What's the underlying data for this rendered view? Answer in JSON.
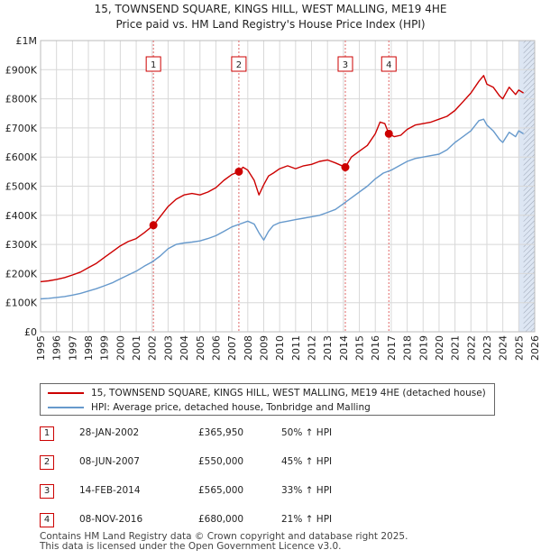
{
  "title": {
    "line1": "15, TOWNSEND SQUARE, KINGS HILL, WEST MALLING, ME19 4HE",
    "line2": "Price paid vs. HM Land Registry's House Price Index (HPI)"
  },
  "colors": {
    "property": "#cc0000",
    "hpi": "#6699cc",
    "marker_line": "#e06666",
    "shade": "#dde6f3"
  },
  "legend": {
    "property": "15, TOWNSEND SQUARE, KINGS HILL, WEST MALLING, ME19 4HE (detached house)",
    "hpi": "HPI: Average price, detached house, Tonbridge and Malling"
  },
  "transactions": [
    {
      "num": "1",
      "date": "28-JAN-2002",
      "price": "£365,950",
      "hpi": "50% ↑ HPI"
    },
    {
      "num": "2",
      "date": "08-JUN-2007",
      "price": "£550,000",
      "hpi": "45% ↑ HPI"
    },
    {
      "num": "3",
      "date": "14-FEB-2014",
      "price": "£565,000",
      "hpi": "33% ↑ HPI"
    },
    {
      "num": "4",
      "date": "08-NOV-2016",
      "price": "£680,000",
      "hpi": "21% ↑ HPI"
    }
  ],
  "footer": {
    "line1": "Contains HM Land Registry data © Crown copyright and database right 2025.",
    "line2": "This data is licensed under the Open Government Licence v3.0."
  },
  "chart_data": {
    "type": "line",
    "title": "15, TOWNSEND SQUARE, KINGS HILL, WEST MALLING, ME19 4HE — Price paid vs. HM Land Registry's House Price Index (HPI)",
    "xlabel": "",
    "ylabel": "",
    "xlim": [
      1995,
      2026
    ],
    "ylim": [
      0,
      1000000
    ],
    "x_ticks": [
      1995,
      1996,
      1997,
      1998,
      1999,
      2000,
      2001,
      2002,
      2003,
      2004,
      2005,
      2006,
      2007,
      2008,
      2009,
      2010,
      2011,
      2012,
      2013,
      2014,
      2015,
      2016,
      2017,
      2018,
      2019,
      2020,
      2021,
      2022,
      2023,
      2024,
      2025,
      2026
    ],
    "y_ticks": [
      {
        "value": 0,
        "label": "£0"
      },
      {
        "value": 100000,
        "label": "£100K"
      },
      {
        "value": 200000,
        "label": "£200K"
      },
      {
        "value": 300000,
        "label": "£300K"
      },
      {
        "value": 400000,
        "label": "£400K"
      },
      {
        "value": 500000,
        "label": "£500K"
      },
      {
        "value": 600000,
        "label": "£600K"
      },
      {
        "value": 700000,
        "label": "£700K"
      },
      {
        "value": 800000,
        "label": "£800K"
      },
      {
        "value": 900000,
        "label": "£900K"
      },
      {
        "value": 1000000,
        "label": "£1M"
      }
    ],
    "grid": true,
    "shaded_region": {
      "from": 2025.0,
      "to": 2026.0,
      "hatched_from": 2025.3
    },
    "series": [
      {
        "name": "15, TOWNSEND SQUARE, KINGS HILL, WEST MALLING, ME19 4HE (detached house)",
        "x": [
          1995.0,
          1995.5,
          1996.0,
          1996.5,
          1997.0,
          1997.5,
          1998.0,
          1998.5,
          1999.0,
          1999.5,
          2000.0,
          2000.5,
          2001.0,
          2001.5,
          2002.08,
          2002.5,
          2003.0,
          2003.5,
          2004.0,
          2004.5,
          2005.0,
          2005.5,
          2006.0,
          2006.5,
          2007.0,
          2007.44,
          2007.7,
          2008.0,
          2008.4,
          2008.7,
          2009.0,
          2009.3,
          2009.6,
          2010.0,
          2010.5,
          2011.0,
          2011.5,
          2012.0,
          2012.5,
          2013.0,
          2013.5,
          2014.12,
          2014.5,
          2015.0,
          2015.5,
          2016.0,
          2016.3,
          2016.6,
          2016.85,
          2017.2,
          2017.6,
          2018.0,
          2018.5,
          2019.0,
          2019.5,
          2020.0,
          2020.5,
          2021.0,
          2021.5,
          2022.0,
          2022.5,
          2022.8,
          2023.0,
          2023.4,
          2023.8,
          2024.0,
          2024.4,
          2024.8,
          2025.0,
          2025.3
        ],
        "y": [
          172000,
          175000,
          180000,
          186000,
          195000,
          205000,
          220000,
          235000,
          255000,
          275000,
          295000,
          310000,
          320000,
          340000,
          365950,
          395000,
          430000,
          455000,
          470000,
          475000,
          470000,
          480000,
          495000,
          520000,
          540000,
          550000,
          565000,
          555000,
          520000,
          470000,
          505000,
          535000,
          545000,
          560000,
          570000,
          560000,
          570000,
          575000,
          585000,
          590000,
          580000,
          565000,
          600000,
          620000,
          640000,
          680000,
          720000,
          715000,
          680000,
          670000,
          675000,
          695000,
          710000,
          715000,
          720000,
          730000,
          740000,
          760000,
          790000,
          820000,
          860000,
          880000,
          850000,
          840000,
          810000,
          800000,
          840000,
          815000,
          830000,
          820000
        ]
      },
      {
        "name": "HPI: Average price, detached house, Tonbridge and Malling",
        "x": [
          1995.0,
          1995.5,
          1996.0,
          1996.5,
          1997.0,
          1997.5,
          1998.0,
          1998.5,
          1999.0,
          1999.5,
          2000.0,
          2000.5,
          2001.0,
          2001.5,
          2002.0,
          2002.5,
          2003.0,
          2003.5,
          2004.0,
          2004.5,
          2005.0,
          2005.5,
          2006.0,
          2006.5,
          2007.0,
          2007.5,
          2008.0,
          2008.4,
          2008.7,
          2009.0,
          2009.3,
          2009.6,
          2010.0,
          2010.5,
          2011.0,
          2011.5,
          2012.0,
          2012.5,
          2013.0,
          2013.5,
          2014.0,
          2014.5,
          2015.0,
          2015.5,
          2016.0,
          2016.5,
          2017.0,
          2017.5,
          2018.0,
          2018.5,
          2019.0,
          2019.5,
          2020.0,
          2020.5,
          2021.0,
          2021.5,
          2022.0,
          2022.5,
          2022.8,
          2023.0,
          2023.4,
          2023.8,
          2024.0,
          2024.4,
          2024.8,
          2025.0,
          2025.3
        ],
        "y": [
          113000,
          115000,
          118000,
          121000,
          126000,
          132000,
          140000,
          148000,
          158000,
          168000,
          182000,
          195000,
          208000,
          225000,
          240000,
          260000,
          285000,
          300000,
          305000,
          308000,
          312000,
          320000,
          330000,
          345000,
          360000,
          370000,
          380000,
          370000,
          340000,
          315000,
          345000,
          365000,
          375000,
          380000,
          385000,
          390000,
          395000,
          400000,
          410000,
          420000,
          440000,
          460000,
          480000,
          500000,
          525000,
          545000,
          555000,
          570000,
          585000,
          595000,
          600000,
          605000,
          610000,
          625000,
          650000,
          670000,
          690000,
          725000,
          730000,
          710000,
          690000,
          660000,
          650000,
          685000,
          670000,
          690000,
          680000
        ]
      }
    ],
    "transactions": [
      {
        "label": "1",
        "x": 2002.08,
        "y": 365950
      },
      {
        "label": "2",
        "x": 2007.44,
        "y": 550000
      },
      {
        "label": "3",
        "x": 2014.12,
        "y": 565000
      },
      {
        "label": "4",
        "x": 2016.85,
        "y": 680000
      }
    ]
  }
}
